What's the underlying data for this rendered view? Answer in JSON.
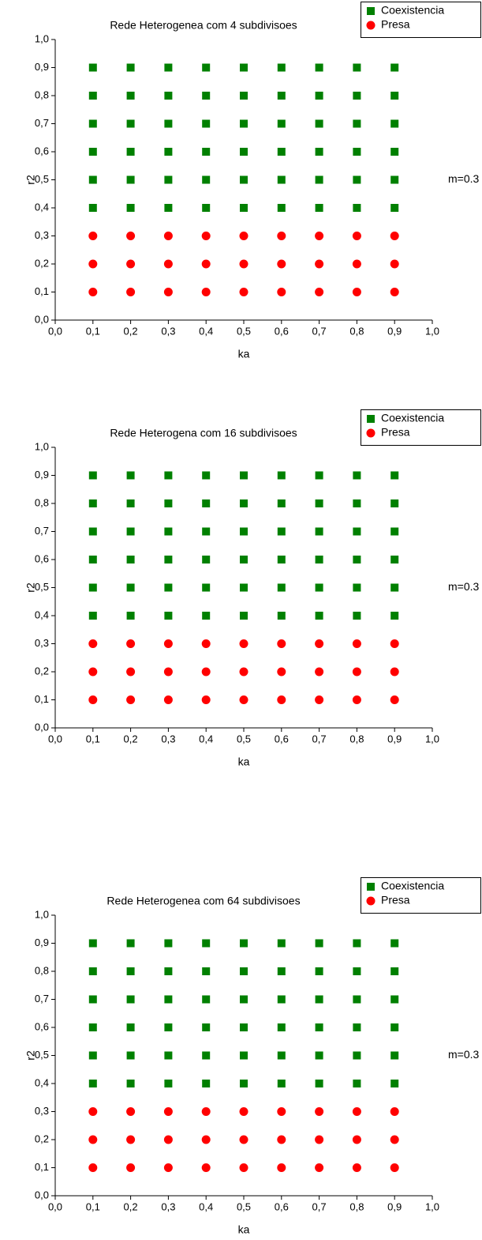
{
  "chart_data": [
    {
      "type": "scatter",
      "title": "Rede Heterogenea com 4 subdivisoes",
      "annotation": "m=0.3",
      "xlabel": "ka",
      "ylabel": "r2",
      "xlim": [
        0,
        1
      ],
      "ylim": [
        0,
        1
      ],
      "xticks": [
        {
          "value": 0,
          "label": "0,0"
        },
        {
          "value": 0.1,
          "label": "0,1"
        },
        {
          "value": 0.2,
          "label": "0,2"
        },
        {
          "value": 0.3,
          "label": "0,3"
        },
        {
          "value": 0.4,
          "label": "0,4"
        },
        {
          "value": 0.5,
          "label": "0,5"
        },
        {
          "value": 0.6,
          "label": "0,6"
        },
        {
          "value": 0.7,
          "label": "0,7"
        },
        {
          "value": 0.8,
          "label": "0,8"
        },
        {
          "value": 0.9,
          "label": "0,9"
        },
        {
          "value": 1,
          "label": "1,0"
        }
      ],
      "yticks": [
        {
          "value": 0,
          "label": "0,0"
        },
        {
          "value": 0.1,
          "label": "0,1"
        },
        {
          "value": 0.2,
          "label": "0,2"
        },
        {
          "value": 0.3,
          "label": "0,3"
        },
        {
          "value": 0.4,
          "label": "0,4"
        },
        {
          "value": 0.5,
          "label": "0,5"
        },
        {
          "value": 0.6,
          "label": "0,6"
        },
        {
          "value": 0.7,
          "label": "0,7"
        },
        {
          "value": 0.8,
          "label": "0,8"
        },
        {
          "value": 0.9,
          "label": "0,9"
        },
        {
          "value": 1,
          "label": "1,0"
        }
      ],
      "series": [
        {
          "name": "Coexistencia",
          "color": "#008000",
          "marker": "square",
          "x": [
            0.1,
            0.2,
            0.3,
            0.4,
            0.5,
            0.6,
            0.7,
            0.8,
            0.9,
            0.1,
            0.2,
            0.3,
            0.4,
            0.5,
            0.6,
            0.7,
            0.8,
            0.9,
            0.1,
            0.2,
            0.3,
            0.4,
            0.5,
            0.6,
            0.7,
            0.8,
            0.9,
            0.1,
            0.2,
            0.3,
            0.4,
            0.5,
            0.6,
            0.7,
            0.8,
            0.9,
            0.1,
            0.2,
            0.3,
            0.4,
            0.5,
            0.6,
            0.7,
            0.8,
            0.9,
            0.1,
            0.2,
            0.3,
            0.4,
            0.5,
            0.6,
            0.7,
            0.8,
            0.9
          ],
          "values": [
            0.4,
            0.4,
            0.4,
            0.4,
            0.4,
            0.4,
            0.4,
            0.4,
            0.4,
            0.5,
            0.5,
            0.5,
            0.5,
            0.5,
            0.5,
            0.5,
            0.5,
            0.5,
            0.6,
            0.6,
            0.6,
            0.6,
            0.6,
            0.6,
            0.6,
            0.6,
            0.6,
            0.7,
            0.7,
            0.7,
            0.7,
            0.7,
            0.7,
            0.7,
            0.7,
            0.7,
            0.8,
            0.8,
            0.8,
            0.8,
            0.8,
            0.8,
            0.8,
            0.8,
            0.8,
            0.9,
            0.9,
            0.9,
            0.9,
            0.9,
            0.9,
            0.9,
            0.9,
            0.9
          ]
        },
        {
          "name": "Presa",
          "color": "#ff0000",
          "marker": "circle",
          "x": [
            0.1,
            0.2,
            0.3,
            0.4,
            0.5,
            0.6,
            0.7,
            0.8,
            0.9,
            0.1,
            0.2,
            0.3,
            0.4,
            0.5,
            0.6,
            0.7,
            0.8,
            0.9,
            0.1,
            0.2,
            0.3,
            0.4,
            0.5,
            0.6,
            0.7,
            0.8,
            0.9
          ],
          "values": [
            0.1,
            0.1,
            0.1,
            0.1,
            0.1,
            0.1,
            0.1,
            0.1,
            0.1,
            0.2,
            0.2,
            0.2,
            0.2,
            0.2,
            0.2,
            0.2,
            0.2,
            0.2,
            0.3,
            0.3,
            0.3,
            0.3,
            0.3,
            0.3,
            0.3,
            0.3,
            0.3
          ]
        }
      ]
    },
    {
      "type": "scatter",
      "title": "Rede Heterogena com 16 subdivisoes",
      "annotation": "m=0.3",
      "xlabel": "ka",
      "ylabel": "r2",
      "xlim": [
        0,
        1
      ],
      "ylim": [
        0,
        1
      ],
      "xticks": [
        {
          "value": 0,
          "label": "0,0"
        },
        {
          "value": 0.1,
          "label": "0,1"
        },
        {
          "value": 0.2,
          "label": "0,2"
        },
        {
          "value": 0.3,
          "label": "0,3"
        },
        {
          "value": 0.4,
          "label": "0,4"
        },
        {
          "value": 0.5,
          "label": "0,5"
        },
        {
          "value": 0.6,
          "label": "0,6"
        },
        {
          "value": 0.7,
          "label": "0,7"
        },
        {
          "value": 0.8,
          "label": "0,8"
        },
        {
          "value": 0.9,
          "label": "0,9"
        },
        {
          "value": 1,
          "label": "1,0"
        }
      ],
      "yticks": [
        {
          "value": 0,
          "label": "0,0"
        },
        {
          "value": 0.1,
          "label": "0,1"
        },
        {
          "value": 0.2,
          "label": "0,2"
        },
        {
          "value": 0.3,
          "label": "0,3"
        },
        {
          "value": 0.4,
          "label": "0,4"
        },
        {
          "value": 0.5,
          "label": "0,5"
        },
        {
          "value": 0.6,
          "label": "0,6"
        },
        {
          "value": 0.7,
          "label": "0,7"
        },
        {
          "value": 0.8,
          "label": "0,8"
        },
        {
          "value": 0.9,
          "label": "0,9"
        },
        {
          "value": 1,
          "label": "1,0"
        }
      ],
      "series": [
        {
          "name": "Coexistencia",
          "color": "#008000",
          "marker": "square",
          "x": [
            0.1,
            0.2,
            0.3,
            0.4,
            0.5,
            0.6,
            0.7,
            0.8,
            0.9,
            0.1,
            0.2,
            0.3,
            0.4,
            0.5,
            0.6,
            0.7,
            0.8,
            0.9,
            0.1,
            0.2,
            0.3,
            0.4,
            0.5,
            0.6,
            0.7,
            0.8,
            0.9,
            0.1,
            0.2,
            0.3,
            0.4,
            0.5,
            0.6,
            0.7,
            0.8,
            0.9,
            0.1,
            0.2,
            0.3,
            0.4,
            0.5,
            0.6,
            0.7,
            0.8,
            0.9,
            0.1,
            0.2,
            0.3,
            0.4,
            0.5,
            0.6,
            0.7,
            0.8,
            0.9
          ],
          "values": [
            0.4,
            0.4,
            0.4,
            0.4,
            0.4,
            0.4,
            0.4,
            0.4,
            0.4,
            0.5,
            0.5,
            0.5,
            0.5,
            0.5,
            0.5,
            0.5,
            0.5,
            0.5,
            0.6,
            0.6,
            0.6,
            0.6,
            0.6,
            0.6,
            0.6,
            0.6,
            0.6,
            0.7,
            0.7,
            0.7,
            0.7,
            0.7,
            0.7,
            0.7,
            0.7,
            0.7,
            0.8,
            0.8,
            0.8,
            0.8,
            0.8,
            0.8,
            0.8,
            0.8,
            0.8,
            0.9,
            0.9,
            0.9,
            0.9,
            0.9,
            0.9,
            0.9,
            0.9,
            0.9
          ]
        },
        {
          "name": "Presa",
          "color": "#ff0000",
          "marker": "circle",
          "x": [
            0.1,
            0.2,
            0.3,
            0.4,
            0.5,
            0.6,
            0.7,
            0.8,
            0.9,
            0.1,
            0.2,
            0.3,
            0.4,
            0.5,
            0.6,
            0.7,
            0.8,
            0.9,
            0.1,
            0.2,
            0.3,
            0.4,
            0.5,
            0.6,
            0.7,
            0.8,
            0.9
          ],
          "values": [
            0.1,
            0.1,
            0.1,
            0.1,
            0.1,
            0.1,
            0.1,
            0.1,
            0.1,
            0.2,
            0.2,
            0.2,
            0.2,
            0.2,
            0.2,
            0.2,
            0.2,
            0.2,
            0.3,
            0.3,
            0.3,
            0.3,
            0.3,
            0.3,
            0.3,
            0.3,
            0.3
          ]
        }
      ]
    },
    {
      "type": "scatter",
      "title": "Rede Heterogenea com 64 subdivisoes",
      "annotation": "m=0.3",
      "xlabel": "ka",
      "ylabel": "r2",
      "xlim": [
        0,
        1
      ],
      "ylim": [
        0,
        1
      ],
      "xticks": [
        {
          "value": 0,
          "label": "0,0"
        },
        {
          "value": 0.1,
          "label": "0,1"
        },
        {
          "value": 0.2,
          "label": "0,2"
        },
        {
          "value": 0.3,
          "label": "0,3"
        },
        {
          "value": 0.4,
          "label": "0,4"
        },
        {
          "value": 0.5,
          "label": "0,5"
        },
        {
          "value": 0.6,
          "label": "0,6"
        },
        {
          "value": 0.7,
          "label": "0,7"
        },
        {
          "value": 0.8,
          "label": "0,8"
        },
        {
          "value": 0.9,
          "label": "0,9"
        },
        {
          "value": 1,
          "label": "1,0"
        }
      ],
      "yticks": [
        {
          "value": 0,
          "label": "0,0"
        },
        {
          "value": 0.1,
          "label": "0,1"
        },
        {
          "value": 0.2,
          "label": "0,2"
        },
        {
          "value": 0.3,
          "label": "0,3"
        },
        {
          "value": 0.4,
          "label": "0,4"
        },
        {
          "value": 0.5,
          "label": "0,5"
        },
        {
          "value": 0.6,
          "label": "0,6"
        },
        {
          "value": 0.7,
          "label": "0,7"
        },
        {
          "value": 0.8,
          "label": "0,8"
        },
        {
          "value": 0.9,
          "label": "0,9"
        },
        {
          "value": 1,
          "label": "1,0"
        }
      ],
      "series": [
        {
          "name": "Coexistencia",
          "color": "#008000",
          "marker": "square",
          "x": [
            0.1,
            0.2,
            0.3,
            0.4,
            0.5,
            0.6,
            0.7,
            0.8,
            0.9,
            0.1,
            0.2,
            0.3,
            0.4,
            0.5,
            0.6,
            0.7,
            0.8,
            0.9,
            0.1,
            0.2,
            0.3,
            0.4,
            0.5,
            0.6,
            0.7,
            0.8,
            0.9,
            0.1,
            0.2,
            0.3,
            0.4,
            0.5,
            0.6,
            0.7,
            0.8,
            0.9,
            0.1,
            0.2,
            0.3,
            0.4,
            0.5,
            0.6,
            0.7,
            0.8,
            0.9,
            0.1,
            0.2,
            0.3,
            0.4,
            0.5,
            0.6,
            0.7,
            0.8,
            0.9
          ],
          "values": [
            0.4,
            0.4,
            0.4,
            0.4,
            0.4,
            0.4,
            0.4,
            0.4,
            0.4,
            0.5,
            0.5,
            0.5,
            0.5,
            0.5,
            0.5,
            0.5,
            0.5,
            0.5,
            0.6,
            0.6,
            0.6,
            0.6,
            0.6,
            0.6,
            0.6,
            0.6,
            0.6,
            0.7,
            0.7,
            0.7,
            0.7,
            0.7,
            0.7,
            0.7,
            0.7,
            0.7,
            0.8,
            0.8,
            0.8,
            0.8,
            0.8,
            0.8,
            0.8,
            0.8,
            0.8,
            0.9,
            0.9,
            0.9,
            0.9,
            0.9,
            0.9,
            0.9,
            0.9,
            0.9
          ]
        },
        {
          "name": "Presa",
          "color": "#ff0000",
          "marker": "circle",
          "x": [
            0.1,
            0.2,
            0.3,
            0.4,
            0.5,
            0.6,
            0.7,
            0.8,
            0.9,
            0.1,
            0.2,
            0.3,
            0.4,
            0.5,
            0.6,
            0.7,
            0.8,
            0.9,
            0.1,
            0.2,
            0.3,
            0.4,
            0.5,
            0.6,
            0.7,
            0.8,
            0.9
          ],
          "values": [
            0.1,
            0.1,
            0.1,
            0.1,
            0.1,
            0.1,
            0.1,
            0.1,
            0.1,
            0.2,
            0.2,
            0.2,
            0.2,
            0.2,
            0.2,
            0.2,
            0.2,
            0.2,
            0.3,
            0.3,
            0.3,
            0.3,
            0.3,
            0.3,
            0.3,
            0.3,
            0.3
          ]
        }
      ]
    }
  ]
}
